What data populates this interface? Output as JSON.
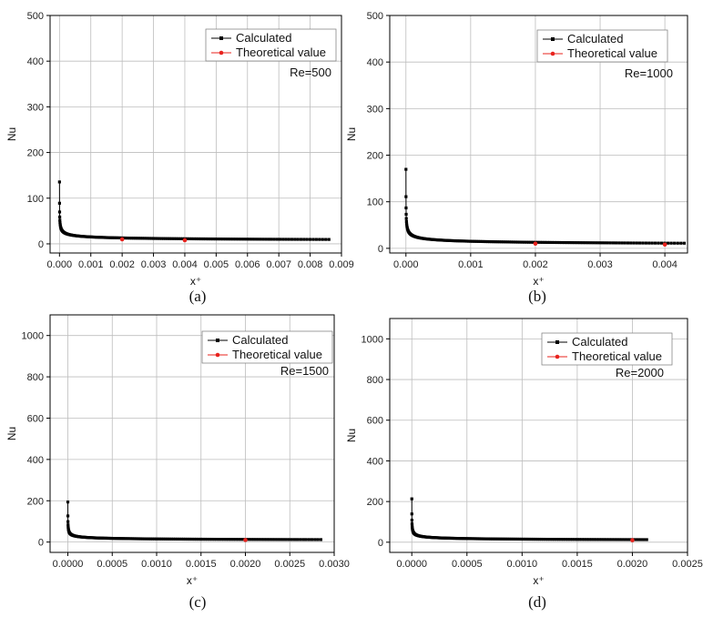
{
  "colors": {
    "calculated": "#000000",
    "theoretical": "#e8231e",
    "grid": "#bdbdbd",
    "axis": "#000000"
  },
  "chart_data": [
    {
      "type": "scatter",
      "caption": "(a)",
      "annotation": "Re=500",
      "xlabel": "x⁺",
      "ylabel": "Nu",
      "xlim": [
        -0.0003,
        0.009
      ],
      "ylim": [
        -20,
        500
      ],
      "xticks": [
        0.0,
        0.001,
        0.002,
        0.003,
        0.004,
        0.005,
        0.006,
        0.007,
        0.008,
        0.009
      ],
      "xtick_labels": [
        "0.000",
        "0.001",
        "0.002",
        "0.003",
        "0.004",
        "0.005",
        "0.006",
        "0.007",
        "0.008",
        "0.009"
      ],
      "yticks": [
        0,
        100,
        200,
        300,
        400,
        500
      ],
      "ytick_labels": [
        "0",
        "100",
        "200",
        "300",
        "400",
        "500"
      ],
      "legend": [
        "Calculated",
        "Theoretical value"
      ],
      "series": [
        {
          "name": "Calculated",
          "x_start": 0.0,
          "x_end": 0.0086,
          "nu_inf": 4.36,
          "coef": 1.08
        },
        {
          "name": "Theoretical value",
          "x": [
            0.002,
            0.004
          ],
          "y": [
            10,
            8
          ]
        }
      ]
    },
    {
      "type": "scatter",
      "caption": "(b)",
      "annotation": "Re=1000",
      "xlabel": "x⁺",
      "ylabel": "Nu",
      "xlim": [
        -0.00025,
        0.00435
      ],
      "ylim": [
        -10,
        500
      ],
      "xticks": [
        0.0,
        0.001,
        0.002,
        0.003,
        0.004
      ],
      "xtick_labels": [
        "0.000",
        "0.001",
        "0.002",
        "0.003",
        "0.004"
      ],
      "yticks": [
        0,
        100,
        200,
        300,
        400,
        500
      ],
      "ytick_labels": [
        "0",
        "100",
        "200",
        "300",
        "400",
        "500"
      ],
      "legend": [
        "Calculated",
        "Theoretical value"
      ],
      "series": [
        {
          "name": "Calculated",
          "x_start": 0.0,
          "x_end": 0.0043,
          "nu_inf": 4.36,
          "coef": 1.08
        },
        {
          "name": "Theoretical value",
          "x": [
            0.002,
            0.004
          ],
          "y": [
            10,
            8
          ]
        }
      ]
    },
    {
      "type": "scatter",
      "caption": "(c)",
      "annotation": "Re=1500",
      "xlabel": "x⁺",
      "ylabel": "Nu",
      "xlim": [
        -0.0002,
        0.003
      ],
      "ylim": [
        -50,
        1100
      ],
      "xticks": [
        0.0,
        0.0005,
        0.001,
        0.0015,
        0.002,
        0.0025,
        0.003
      ],
      "xtick_labels": [
        "0.0000",
        "0.0005",
        "0.0010",
        "0.0015",
        "0.0020",
        "0.0025",
        "0.0030"
      ],
      "yticks": [
        0,
        200,
        400,
        600,
        800,
        1000
      ],
      "ytick_labels": [
        "0",
        "200",
        "400",
        "600",
        "800",
        "1000"
      ],
      "legend": [
        "Calculated",
        "Theoretical value"
      ],
      "series": [
        {
          "name": "Calculated",
          "x_start": 0.0,
          "x_end": 0.00285,
          "nu_inf": 4.36,
          "coef": 1.08
        },
        {
          "name": "Theoretical value",
          "x": [
            0.002
          ],
          "y": [
            10
          ]
        }
      ]
    },
    {
      "type": "scatter",
      "caption": "(d)",
      "annotation": "Re=2000",
      "xlabel": "x⁺",
      "ylabel": "Nu",
      "xlim": [
        -0.0002,
        0.0025
      ],
      "ylim": [
        -50,
        1100
      ],
      "xticks": [
        0.0,
        0.0005,
        0.001,
        0.0015,
        0.002,
        0.0025
      ],
      "xtick_labels": [
        "0.0000",
        "0.0005",
        "0.0010",
        "0.0015",
        "0.0020",
        "0.0025"
      ],
      "yticks": [
        0,
        200,
        400,
        600,
        800,
        1000
      ],
      "ytick_labels": [
        "0",
        "200",
        "400",
        "600",
        "800",
        "1000"
      ],
      "legend": [
        "Calculated",
        "Theoretical value"
      ],
      "series": [
        {
          "name": "Calculated",
          "x_start": 0.0,
          "x_end": 0.00213,
          "nu_inf": 4.36,
          "coef": 1.08
        },
        {
          "name": "Theoretical value",
          "x": [
            0.002
          ],
          "y": [
            10
          ]
        }
      ]
    }
  ]
}
